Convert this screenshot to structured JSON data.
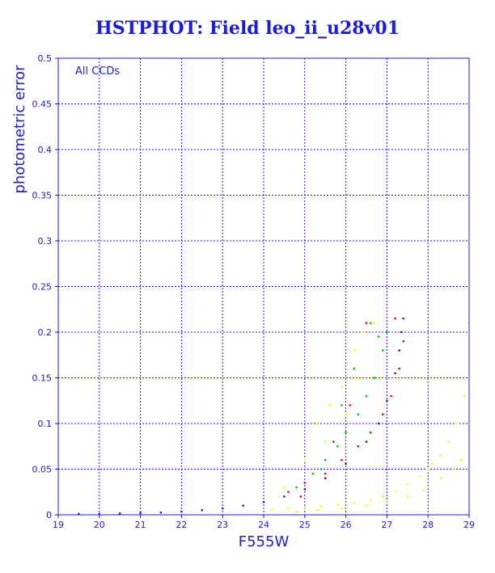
{
  "chart_data": {
    "type": "scatter",
    "title": "HSTPHOT: Field leo_ii_u28v01",
    "xlabel": "F555W",
    "ylabel": "photometric error",
    "annotation": "All CCDs",
    "xlim": [
      19,
      29
    ],
    "ylim": [
      0,
      0.5
    ],
    "xticks": [
      "19",
      "20",
      "21",
      "22",
      "23",
      "24",
      "25",
      "26",
      "27",
      "28",
      "29"
    ],
    "yticks": [
      "0",
      "0.05",
      "0.1",
      "0.15",
      "0.2",
      "0.25",
      "0.3",
      "0.35",
      "0.4",
      "0.45",
      "0.5"
    ],
    "grid": true,
    "series": [
      {
        "color": "#ffff00",
        "points": [
          [
            24.2,
            0.006
          ],
          [
            24.6,
            0.007
          ],
          [
            25.0,
            0.008
          ],
          [
            25.4,
            0.009
          ],
          [
            25.8,
            0.011
          ],
          [
            26.2,
            0.013
          ],
          [
            26.6,
            0.016
          ],
          [
            26.9,
            0.02
          ],
          [
            27.2,
            0.026
          ],
          [
            27.5,
            0.033
          ],
          [
            27.8,
            0.042
          ],
          [
            28.0,
            0.05
          ],
          [
            28.1,
            0.056
          ],
          [
            28.3,
            0.065
          ],
          [
            28.5,
            0.08
          ],
          [
            28.7,
            0.1
          ],
          [
            28.9,
            0.13
          ],
          [
            29.0,
            0.21
          ],
          [
            24.8,
            0.003
          ],
          [
            25.3,
            0.005
          ],
          [
            25.9,
            0.007
          ],
          [
            26.5,
            0.01
          ],
          [
            27.0,
            0.015
          ],
          [
            27.5,
            0.02
          ],
          [
            27.9,
            0.027
          ],
          [
            28.3,
            0.04
          ],
          [
            28.6,
            0.05
          ],
          [
            28.8,
            0.06
          ],
          [
            24.5,
            0.03
          ],
          [
            25.0,
            0.06
          ],
          [
            25.3,
            0.1
          ],
          [
            25.6,
            0.12
          ],
          [
            25.9,
            0.14
          ],
          [
            26.2,
            0.18
          ],
          [
            26.4,
            0.2
          ],
          [
            26.7,
            0.21
          ],
          [
            25.2,
            0.045
          ],
          [
            25.5,
            0.08
          ],
          [
            26.0,
            0.11
          ],
          [
            26.3,
            0.15
          ]
        ]
      },
      {
        "color": "#00cc00",
        "points": [
          [
            24.8,
            0.03
          ],
          [
            25.2,
            0.045
          ],
          [
            25.5,
            0.06
          ],
          [
            25.8,
            0.075
          ],
          [
            26.0,
            0.09
          ],
          [
            26.3,
            0.11
          ],
          [
            26.5,
            0.13
          ],
          [
            26.7,
            0.15
          ],
          [
            26.9,
            0.18
          ],
          [
            27.0,
            0.2
          ],
          [
            26.6,
            0.21
          ],
          [
            25.9,
            0.12
          ],
          [
            26.2,
            0.16
          ],
          [
            25.4,
            0.05
          ],
          [
            26.8,
            0.195
          ]
        ]
      },
      {
        "color": "#ff0000",
        "points": [
          [
            24.6,
            0.025
          ],
          [
            25.0,
            0.035
          ],
          [
            25.5,
            0.045
          ],
          [
            25.9,
            0.06
          ],
          [
            26.3,
            0.075
          ],
          [
            26.6,
            0.09
          ],
          [
            26.9,
            0.11
          ],
          [
            27.1,
            0.13
          ],
          [
            27.3,
            0.16
          ],
          [
            27.4,
            0.19
          ],
          [
            26.5,
            0.21
          ],
          [
            25.7,
            0.08
          ],
          [
            26.1,
            0.12
          ],
          [
            24.9,
            0.02
          ],
          [
            27.2,
            0.215
          ]
        ]
      },
      {
        "color": "#1a1aff",
        "points": [
          [
            19.5,
            0.001
          ],
          [
            20.0,
            0.001
          ],
          [
            20.5,
            0.0015
          ],
          [
            21.0,
            0.002
          ],
          [
            21.5,
            0.0025
          ],
          [
            22.0,
            0.0035
          ],
          [
            22.5,
            0.005
          ],
          [
            23.0,
            0.007
          ],
          [
            23.5,
            0.01
          ],
          [
            24.0,
            0.014
          ],
          [
            24.5,
            0.02
          ],
          [
            25.0,
            0.028
          ],
          [
            25.5,
            0.04
          ],
          [
            26.0,
            0.056
          ],
          [
            26.5,
            0.08
          ],
          [
            26.8,
            0.1
          ],
          [
            27.0,
            0.125
          ],
          [
            27.2,
            0.155
          ],
          [
            27.3,
            0.18
          ],
          [
            27.35,
            0.2
          ],
          [
            27.4,
            0.215
          ]
        ]
      }
    ]
  }
}
